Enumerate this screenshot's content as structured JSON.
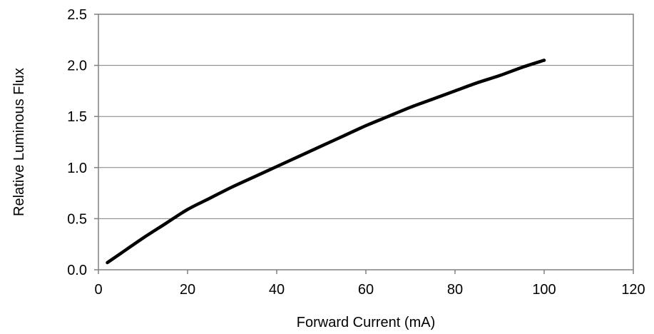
{
  "chart_data": {
    "type": "line",
    "xlabel": "Forward Current (mA)",
    "ylabel": "Relative Luminous Flux",
    "xlim": [
      0,
      120
    ],
    "ylim": [
      0,
      2.5
    ],
    "x_ticks": [
      "0",
      "20",
      "40",
      "60",
      "80",
      "100",
      "120"
    ],
    "y_ticks": [
      "0.0",
      "0.5",
      "1.0",
      "1.5",
      "2.0",
      "2.5"
    ],
    "grid": "horizontal",
    "series": [
      {
        "x": [
          2,
          5,
          10,
          15,
          20,
          25,
          30,
          35,
          40,
          45,
          50,
          55,
          60,
          65,
          70,
          75,
          80,
          85,
          90,
          95,
          100
        ],
        "y": [
          0.07,
          0.16,
          0.31,
          0.45,
          0.59,
          0.7,
          0.81,
          0.91,
          1.01,
          1.11,
          1.21,
          1.31,
          1.41,
          1.5,
          1.59,
          1.67,
          1.75,
          1.83,
          1.9,
          1.98,
          2.05
        ]
      }
    ]
  }
}
